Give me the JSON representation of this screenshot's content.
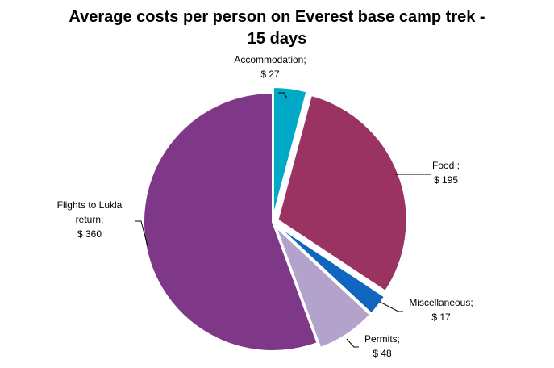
{
  "chart_data": {
    "type": "pie",
    "title_lines": [
      "Average costs per person on Everest base camp trek -",
      "15 days"
    ],
    "slices": [
      {
        "name": "Accommodation",
        "value": 27,
        "value_label": "$ 27",
        "label_lines": [
          "Accommodation;",
          "$ 27"
        ],
        "color": "#00A9C6"
      },
      {
        "name": "Food",
        "value": 195,
        "value_label": "$ 195",
        "label_lines": [
          "Food ;",
          "$ 195"
        ],
        "color": "#9B3362"
      },
      {
        "name": "Miscellaneous",
        "value": 17,
        "value_label": "$ 17",
        "label_lines": [
          "Miscellaneous;",
          "$ 17"
        ],
        "color": "#1066BF"
      },
      {
        "name": "Permits",
        "value": 48,
        "value_label": "$ 48",
        "label_lines": [
          "Permits;",
          "$ 48"
        ],
        "color": "#B3A2CC"
      },
      {
        "name": "Flights to Lukla return",
        "value": 360,
        "value_label": "$ 360",
        "label_lines": [
          "Flights to Lukla",
          "return;",
          "$ 360"
        ],
        "color": "#7F3888"
      }
    ]
  }
}
